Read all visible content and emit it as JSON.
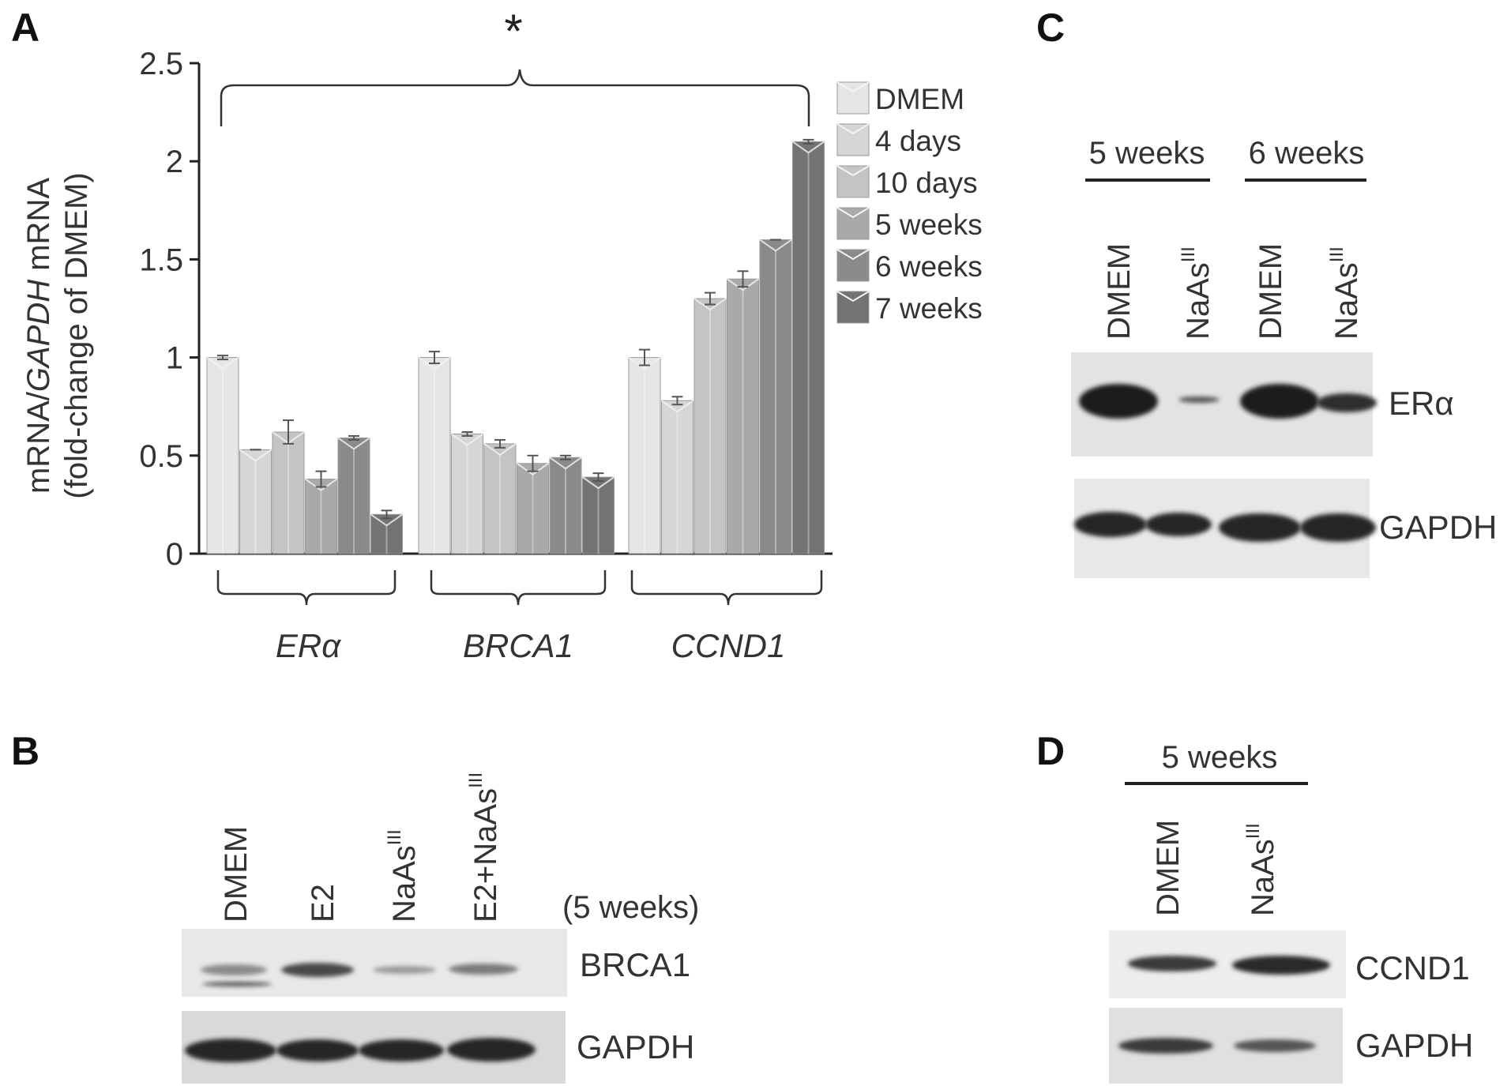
{
  "panels": {
    "A": "A",
    "B": "B",
    "C": "C",
    "D": "D"
  },
  "chart_data": {
    "type": "bar",
    "panel": "A",
    "ylabel_line1_parts": [
      "mRNA/",
      "GAPDH",
      " mRNA"
    ],
    "ylabel_line2": "(fold-change of DMEM)",
    "ylim": [
      0,
      2.5
    ],
    "yticks": [
      "0",
      "0.5",
      "1",
      "1.5",
      "2",
      "2.5"
    ],
    "categories": [
      "ERα",
      "BRCA1",
      "CCND1"
    ],
    "legend": {
      "placement": "top-right"
    },
    "significance": "*",
    "series": [
      {
        "name": "DMEM",
        "color": "#e6e6e6",
        "values": [
          1.0,
          1.0,
          1.0
        ],
        "errors": [
          0.01,
          0.03,
          0.04
        ]
      },
      {
        "name": "4 days",
        "color": "#d6d6d6",
        "values": [
          0.53,
          0.61,
          0.78
        ],
        "errors": [
          0.0,
          0.01,
          0.02
        ]
      },
      {
        "name": "10 days",
        "color": "#c4c4c4",
        "values": [
          0.62,
          0.56,
          1.3
        ],
        "errors": [
          0.06,
          0.02,
          0.03
        ]
      },
      {
        "name": "5 weeks",
        "color": "#a9a9a9",
        "values": [
          0.38,
          0.46,
          1.4
        ],
        "errors": [
          0.04,
          0.04,
          0.04
        ]
      },
      {
        "name": "6 weeks",
        "color": "#8a8a8a",
        "values": [
          0.59,
          0.49,
          1.6
        ],
        "errors": [
          0.01,
          0.01,
          0.0
        ]
      },
      {
        "name": "7 weeks",
        "color": "#737373",
        "values": [
          0.2,
          0.39,
          2.1
        ],
        "errors": [
          0.02,
          0.02,
          0.01
        ]
      }
    ]
  },
  "panelB": {
    "lanes": [
      "DMEM",
      "E2",
      "NaAs",
      "E2+NaAs"
    ],
    "lane_superscripts": [
      "",
      "",
      "III",
      "III"
    ],
    "note": "(5 weeks)",
    "blots": [
      "BRCA1",
      "GAPDH"
    ]
  },
  "panelC": {
    "groups": [
      "5 weeks",
      "6 weeks"
    ],
    "lanes": [
      "DMEM",
      "NaAs",
      "DMEM",
      "NaAs"
    ],
    "lane_superscripts": [
      "",
      "III",
      "",
      "III"
    ],
    "blots": [
      "ERα",
      "GAPDH"
    ]
  },
  "panelD": {
    "groups": [
      "5 weeks"
    ],
    "lanes": [
      "DMEM",
      "NaAs"
    ],
    "lane_superscripts": [
      "",
      "III"
    ],
    "blots": [
      "CCND1",
      "GAPDH"
    ]
  }
}
